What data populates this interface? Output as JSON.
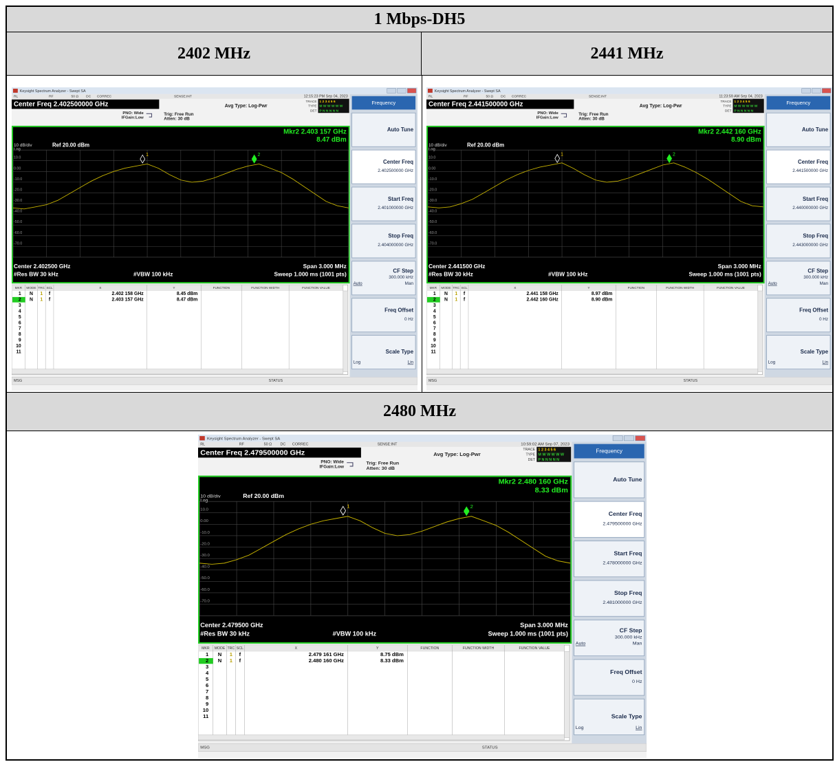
{
  "title": "1 Mbps-DH5",
  "screens": [
    {
      "label": "2402 MHz",
      "window_title": "Keysight Spectrum Analyzer - Swept SA",
      "status_items": [
        "RL",
        "RF",
        "50 Ω",
        "DC",
        "CORREC",
        "SENSE:INT"
      ],
      "timestamp": "12:15:23 PM Sep 04, 2023",
      "center_box": "Center Freq 2.402500000 GHz",
      "settings": [
        "PNO: Wide",
        "IFGain:Low",
        "Trig: Free Run",
        "Atten: 30 dB",
        "Avg Type: Log-Pwr"
      ],
      "trace_info": [
        {
          "label": "TRACE",
          "value": "1 2 3 4 5 6"
        },
        {
          "label": "TYPE",
          "value": "M W W W W W"
        },
        {
          "label": "DET",
          "value": "P N N N N N"
        }
      ],
      "marker_readout": "Mkr2 2.403 157 GHz",
      "marker_value": "8.47 dBm",
      "scale": "10 dB/div",
      "ref": "Ref 20.00 dBm",
      "log": "Log",
      "ylim": [
        -80,
        20
      ],
      "yticks": [
        {
          "value": 10,
          "label": "10.0"
        },
        {
          "value": 0,
          "label": "0.00"
        },
        {
          "value": -10,
          "label": "-10.0"
        },
        {
          "value": -20,
          "label": "-20.0"
        },
        {
          "value": -30,
          "label": "-30.0"
        },
        {
          "value": -40,
          "label": "-40.0"
        },
        {
          "value": -50,
          "label": "-50.0"
        },
        {
          "value": -60,
          "label": "-60.0"
        },
        {
          "value": -70,
          "label": "-70.0"
        }
      ],
      "xlim": [
        2.401,
        2.404
      ],
      "trace": [
        -34,
        -35,
        -33,
        -31,
        -27,
        -21,
        -15,
        -9,
        -4,
        0,
        3,
        5,
        7,
        3,
        -3,
        -8,
        -10,
        -9,
        -6,
        -2,
        2,
        5,
        7,
        3,
        -1,
        -7,
        -14,
        -21,
        -28,
        -32,
        -34
      ],
      "center": "Center 2.402500 GHz",
      "span": "Span 3.000 MHz",
      "rbw": "#Res BW 30 kHz",
      "vbw": "#VBW 100 kHz",
      "sweep": "Sweep  1.000 ms (1001 pts)",
      "table_header": [
        "MKR",
        "MODE",
        "TRC",
        "SCL",
        "X",
        "Y",
        "FUNCTION",
        "FUNCTION WIDTH",
        "FUNCTION VALUE"
      ],
      "markers": [
        {
          "n": "1",
          "mode": "N",
          "trc": "1",
          "scl": "f",
          "x": {
            "value": 2.402158,
            "label": "2.402 158 GHz"
          },
          "y": {
            "value": 8.45,
            "label": "8.45 dBm"
          }
        },
        {
          "n": "2",
          "mode": "N",
          "trc": "1",
          "scl": "f",
          "x": {
            "value": 2.403157,
            "label": "2.403 157 GHz"
          },
          "y": {
            "value": 8.47,
            "label": "8.47 dBm"
          }
        }
      ],
      "empty_rows": [
        "3",
        "4",
        "5",
        "6",
        "7",
        "8",
        "9",
        "10",
        "11"
      ],
      "menu": "Frequency",
      "keys": [
        {
          "label": "Auto Tune"
        },
        {
          "label": "Center Freq",
          "value": "2.402500000 GHz"
        },
        {
          "label": "Start Freq",
          "value": "2.401000000 GHz"
        },
        {
          "label": "Stop Freq",
          "value": "2.404000000 GHz"
        },
        {
          "label": "CF Step",
          "value": "300.000 kHz",
          "options": [
            "Auto",
            "Man"
          ]
        },
        {
          "label": "Freq Offset",
          "value": "0 Hz"
        },
        {
          "label": "Scale Type",
          "options": [
            "Log",
            "Lin"
          ]
        }
      ],
      "msg": "MSG",
      "status": "STATUS"
    },
    {
      "label": "2441 MHz",
      "window_title": "Keysight Spectrum Analyzer - Swept SA",
      "status_items": [
        "RL",
        "RF",
        "50 Ω",
        "DC",
        "CORREC",
        "SENSE:INT"
      ],
      "timestamp": "11:23:59 AM Sep 04, 2023",
      "center_box": "Center Freq 2.441500000 GHz",
      "settings": [
        "PNO: Wide",
        "IFGain:Low",
        "Trig: Free Run",
        "Atten: 30 dB",
        "Avg Type: Log-Pwr"
      ],
      "trace_info": [
        {
          "label": "TRACE",
          "value": "1 2 3 4 5 6"
        },
        {
          "label": "TYPE",
          "value": "M W W W W W"
        },
        {
          "label": "DET",
          "value": "P N N N N N"
        }
      ],
      "marker_readout": "Mkr2 2.442 160 GHz",
      "marker_value": "8.90 dBm",
      "scale": "10 dB/div",
      "ref": "Ref 20.00 dBm",
      "log": "Log",
      "ylim": [
        -80,
        20
      ],
      "yticks": [
        {
          "value": 10,
          "label": "10.0"
        },
        {
          "value": 0,
          "label": "0.00"
        },
        {
          "value": -10,
          "label": "-10.0"
        },
        {
          "value": -20,
          "label": "-20.0"
        },
        {
          "value": -30,
          "label": "-30.0"
        },
        {
          "value": -40,
          "label": "-40.0"
        },
        {
          "value": -50,
          "label": "-50.0"
        },
        {
          "value": -60,
          "label": "-60.0"
        },
        {
          "value": -70,
          "label": "-70.0"
        }
      ],
      "xlim": [
        2.44,
        2.443
      ],
      "trace": [
        -33,
        -34,
        -33,
        -30,
        -26,
        -20,
        -14,
        -8,
        -3,
        1,
        4,
        6,
        8,
        3,
        -3,
        -8,
        -10,
        -9,
        -6,
        -2,
        2,
        6,
        8,
        4,
        -1,
        -7,
        -14,
        -21,
        -28,
        -32,
        -33
      ],
      "center": "Center 2.441500 GHz",
      "span": "Span 3.000 MHz",
      "rbw": "#Res BW 30 kHz",
      "vbw": "#VBW 100 kHz",
      "sweep": "Sweep  1.000 ms (1001 pts)",
      "table_header": [
        "MKR",
        "MODE",
        "TRC",
        "SCL",
        "X",
        "Y",
        "FUNCTION",
        "FUNCTION WIDTH",
        "FUNCTION VALUE"
      ],
      "markers": [
        {
          "n": "1",
          "mode": "N",
          "trc": "1",
          "scl": "f",
          "x": {
            "value": 2.441158,
            "label": "2.441 158 GHz"
          },
          "y": {
            "value": 8.97,
            "label": "8.97 dBm"
          }
        },
        {
          "n": "2",
          "mode": "N",
          "trc": "1",
          "scl": "f",
          "x": {
            "value": 2.44216,
            "label": "2.442 160 GHz"
          },
          "y": {
            "value": 8.9,
            "label": "8.90 dBm"
          }
        }
      ],
      "empty_rows": [
        "3",
        "4",
        "5",
        "6",
        "7",
        "8",
        "9",
        "10",
        "11"
      ],
      "menu": "Frequency",
      "keys": [
        {
          "label": "Auto Tune"
        },
        {
          "label": "Center Freq",
          "value": "2.441500000 GHz"
        },
        {
          "label": "Start Freq",
          "value": "2.440000000 GHz"
        },
        {
          "label": "Stop Freq",
          "value": "2.443000000 GHz"
        },
        {
          "label": "CF Step",
          "value": "300.000 kHz",
          "options": [
            "Auto",
            "Man"
          ]
        },
        {
          "label": "Freq Offset",
          "value": "0 Hz"
        },
        {
          "label": "Scale Type",
          "options": [
            "Log",
            "Lin"
          ]
        }
      ],
      "msg": "MSG",
      "status": "STATUS"
    },
    {
      "label": "2480 MHz",
      "window_title": "Keysight Spectrum Analyzer - Swept SA",
      "status_items": [
        "RL",
        "RF",
        "50 Ω",
        "DC",
        "CORREC",
        "SENSE:INT"
      ],
      "timestamp": "10:59:02 AM Sep 07, 2023",
      "center_box": "Center Freq 2.479500000 GHz",
      "settings": [
        "PNO: Wide",
        "IFGain:Low",
        "Trig: Free Run",
        "Atten: 30 dB",
        "Avg Type: Log-Pwr"
      ],
      "trace_info": [
        {
          "label": "TRACE",
          "value": "1 2 3 4 5 6"
        },
        {
          "label": "TYPE",
          "value": "M W W W W W"
        },
        {
          "label": "DET",
          "value": "P N N N N N"
        }
      ],
      "marker_readout": "Mkr2 2.480 160 GHz",
      "marker_value": "8.33 dBm",
      "scale": "10 dB/div",
      "ref": "Ref 20.00 dBm",
      "log": "Log",
      "ylim": [
        -80,
        20
      ],
      "yticks": [
        {
          "value": 10,
          "label": "10.0"
        },
        {
          "value": 0,
          "label": "0.00"
        },
        {
          "value": -10,
          "label": "-10.0"
        },
        {
          "value": -20,
          "label": "-20.0"
        },
        {
          "value": -30,
          "label": "-30.0"
        },
        {
          "value": -40,
          "label": "-40.0"
        },
        {
          "value": -50,
          "label": "-50.0"
        },
        {
          "value": -60,
          "label": "-60.0"
        },
        {
          "value": -70,
          "label": "-70.0"
        }
      ],
      "xlim": [
        2.478,
        2.481
      ],
      "trace": [
        -34,
        -35,
        -34,
        -31,
        -27,
        -21,
        -15,
        -9,
        -4,
        0,
        3,
        5,
        7,
        3,
        -3,
        -8,
        -10,
        -9,
        -6,
        -2,
        2,
        5,
        7,
        3,
        -1,
        -7,
        -14,
        -21,
        -28,
        -32,
        -34
      ],
      "center": "Center 2.479500 GHz",
      "span": "Span 3.000 MHz",
      "rbw": "#Res BW 30 kHz",
      "vbw": "#VBW 100 kHz",
      "sweep": "Sweep  1.000 ms (1001 pts)",
      "table_header": [
        "MKR",
        "MODE",
        "TRC",
        "SCL",
        "X",
        "Y",
        "FUNCTION",
        "FUNCTION WIDTH",
        "FUNCTION VALUE"
      ],
      "markers": [
        {
          "n": "1",
          "mode": "N",
          "trc": "1",
          "scl": "f",
          "x": {
            "value": 2.479161,
            "label": "2.479 161 GHz"
          },
          "y": {
            "value": 8.75,
            "label": "8.75 dBm"
          }
        },
        {
          "n": "2",
          "mode": "N",
          "trc": "1",
          "scl": "f",
          "x": {
            "value": 2.48016,
            "label": "2.480 160 GHz"
          },
          "y": {
            "value": 8.33,
            "label": "8.33 dBm"
          }
        }
      ],
      "empty_rows": [
        "3",
        "4",
        "5",
        "6",
        "7",
        "8",
        "9",
        "10",
        "11"
      ],
      "menu": "Frequency",
      "keys": [
        {
          "label": "Auto Tune"
        },
        {
          "label": "Center Freq",
          "value": "2.479500000 GHz"
        },
        {
          "label": "Start Freq",
          "value": "2.478000000 GHz"
        },
        {
          "label": "Stop Freq",
          "value": "2.481000000 GHz"
        },
        {
          "label": "CF Step",
          "value": "300.000 kHz",
          "options": [
            "Auto",
            "Man"
          ]
        },
        {
          "label": "Freq Offset",
          "value": "0 Hz"
        },
        {
          "label": "Scale Type",
          "options": [
            "Log",
            "Lin"
          ]
        }
      ],
      "msg": "MSG",
      "status": "STATUS"
    }
  ]
}
